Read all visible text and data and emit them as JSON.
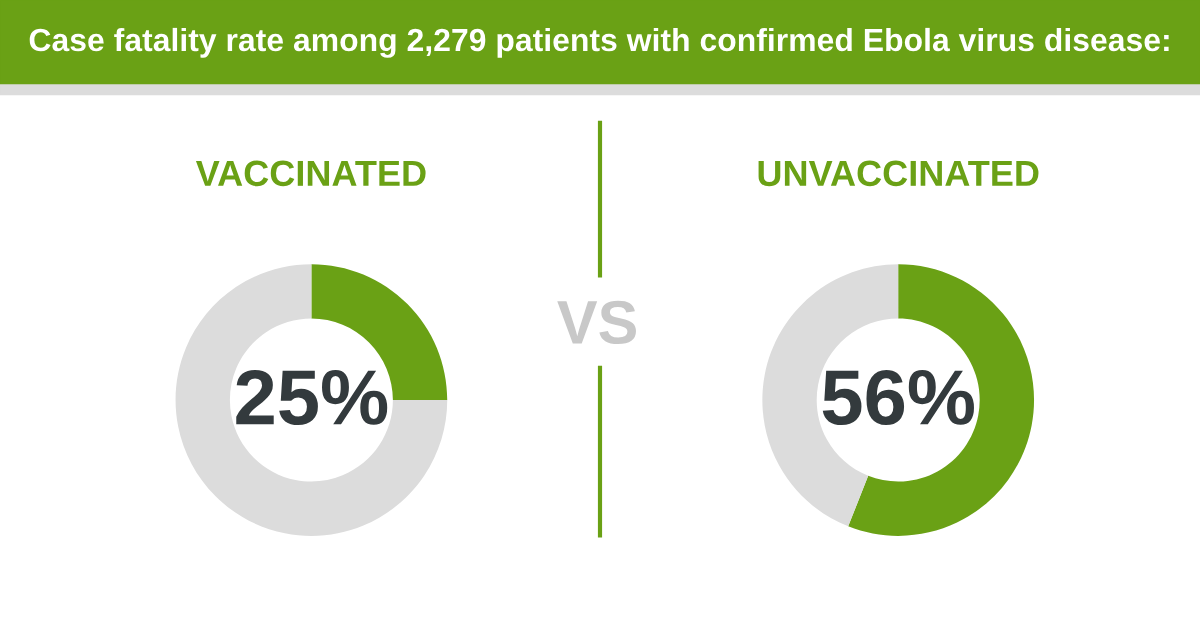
{
  "chart_data": [
    {
      "type": "other",
      "title": "Case fatality rate among 2,279 patients with confirmed Ebola virus disease:",
      "annotations": [
        "VS"
      ]
    },
    {
      "type": "donut",
      "title": "VACCINATED",
      "categories": [
        null,
        null
      ],
      "values": [
        25,
        75
      ],
      "colors": [
        "#6aa115",
        "#dcdcdc"
      ],
      "value_labels": [
        "25%",
        null
      ]
    },
    {
      "type": "donut",
      "title": "UNVACCINATED",
      "categories": [
        null,
        null
      ],
      "values": [
        56,
        44
      ],
      "colors": [
        "#6aa115",
        "#dcdcdc"
      ],
      "value_labels": [
        "56%",
        null
      ]
    }
  ]
}
